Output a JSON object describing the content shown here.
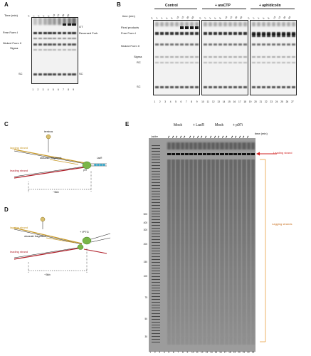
{
  "figure": {
    "panels": {
      "A": {
        "label": "A",
        "time_label": "Time (min)",
        "times": [
          "0",
          "1",
          "2",
          "4",
          "6",
          "10",
          "15",
          "30",
          "60"
        ],
        "left_labels": {
          "free_form_i": "Free Form I",
          "nicked_form_ii": "Nicked Form II",
          "sigma": "Sigma",
          "sc": "SC"
        },
        "right_labels": {
          "ot": "OT",
          "reversed_fork": "Reversed Fork",
          "bottom_sc": "SC"
        },
        "lane_numbers": [
          "1",
          "2",
          "3",
          "4",
          "5",
          "6",
          "7",
          "8",
          "9"
        ]
      },
      "B": {
        "label": "B",
        "time_label": "time (min)",
        "groups": [
          "Control",
          "+ araCTP",
          "+ aphidicolin"
        ],
        "times": [
          "0",
          "2",
          "4",
          "6",
          "8",
          "10",
          "15",
          "30",
          "60"
        ],
        "left_labels": {
          "final_products": "Final products",
          "free_form_i": "Free Form I",
          "nicked_form_ii": "Nicked Form II",
          "sigma": "Sigma",
          "rc": "RC",
          "sc": "SC"
        },
        "lane_numbers": [
          "1",
          "2",
          "3",
          "4",
          "5",
          "6",
          "7",
          "8",
          "9",
          "10",
          "11",
          "12",
          "13",
          "14",
          "15",
          "16",
          "17",
          "18",
          "19",
          "20",
          "21",
          "22",
          "23",
          "24",
          "25",
          "26",
          "27"
        ]
      },
      "C": {
        "label": "C",
        "lagging_label": "lagging strand",
        "leading_label": "leading strand",
        "okazaki_label": "okazaki fragment",
        "terminus_label": "terminus",
        "lacr_label": "LacR",
        "p97_label": "p97",
        "length_label": "~5kb"
      },
      "D": {
        "label": "D",
        "lagging_label": "lagging strand",
        "leading_label": "leading strand",
        "okazaki_label": "okazaki fragment",
        "iptg_label": "+ IPTG",
        "length_label": "~5kb"
      },
      "E": {
        "label": "E",
        "groups": [
          "Mock",
          "+ LacR",
          "Mock",
          "+ p97i"
        ],
        "time_label": "time (min)",
        "top_left": "Ladder",
        "leading_label": "Leading strand",
        "lagging_label": "Lagging strands",
        "size_markers": [
          "500",
          "400",
          "300",
          "200",
          "150",
          "100",
          "75",
          "50",
          "30"
        ],
        "lane_numbers": [
          "1",
          "2",
          "3",
          "4",
          "5",
          "6",
          "7",
          "8",
          "9",
          "10",
          "11",
          "12",
          "13",
          "14",
          "15",
          "16",
          "17",
          "18",
          "19",
          "20",
          "21",
          "22",
          "23"
        ]
      }
    },
    "colors": {
      "lagging": "#c89a2a",
      "leading": "#b0202a",
      "lacr": "#3aa7c9",
      "helicase": "#7ab648",
      "arrow_red": "#d02020",
      "bracket_orange": "#e8a040"
    }
  }
}
